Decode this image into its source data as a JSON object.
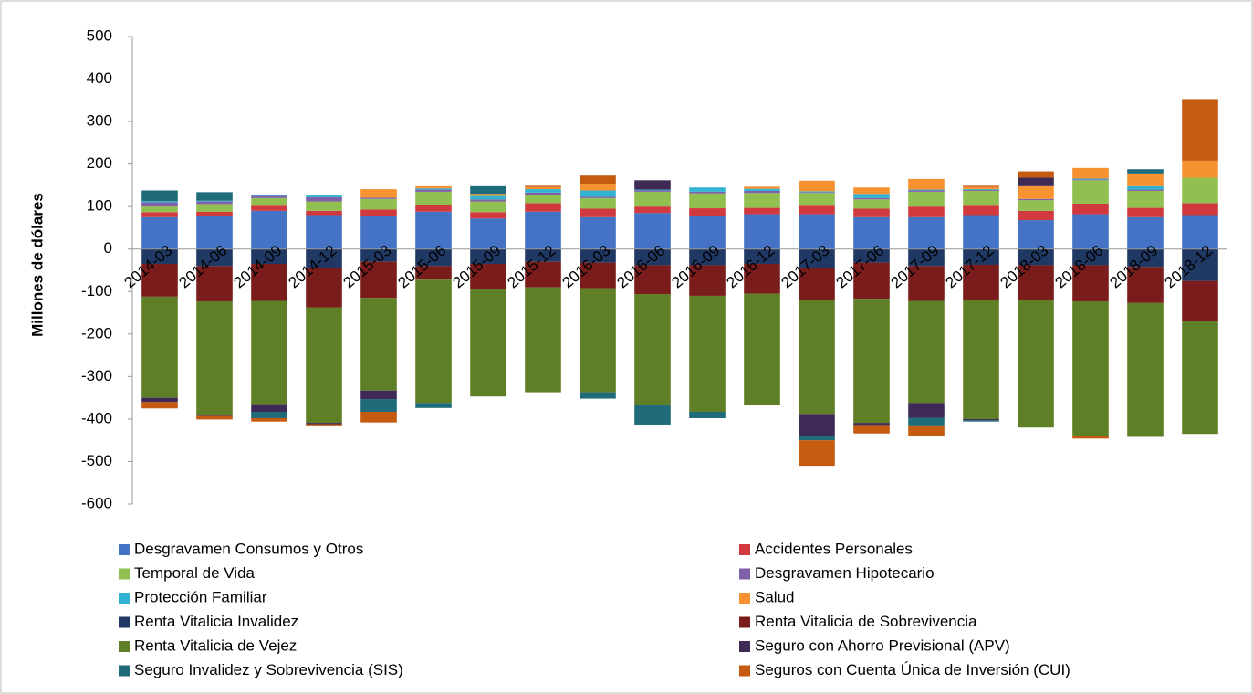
{
  "chart_data": {
    "type": "bar",
    "stacked": true,
    "y_label": "Millones de dólares",
    "categories": [
      "2014-03",
      "2014-06",
      "2014-09",
      "2014-12",
      "2015-03",
      "2015-06",
      "2015-09",
      "2015-12",
      "2016-03",
      "2016-06",
      "2016-09",
      "2016-12",
      "2017-03",
      "2017-06",
      "2017-09",
      "2017-12",
      "2018-03",
      "2018-06",
      "2018-09",
      "2018-12"
    ],
    "ylim": [
      -600,
      500
    ],
    "yticks": [
      500,
      400,
      300,
      200,
      100,
      0,
      -100,
      -200,
      -300,
      -400,
      -500,
      -600
    ],
    "grid": false,
    "legend": "bottom",
    "series": [
      {
        "name": "Desgravamen Consumos y Otros",
        "color": "#4472c4",
        "values": [
          75,
          78,
          90,
          80,
          78,
          88,
          72,
          88,
          75,
          85,
          78,
          82,
          82,
          75,
          75,
          80,
          68,
          82,
          75,
          80
        ]
      },
      {
        "name": "Accidentes Personales",
        "color": "#d0393e",
        "values": [
          12,
          10,
          12,
          10,
          15,
          15,
          15,
          20,
          20,
          15,
          18,
          15,
          20,
          20,
          25,
          22,
          22,
          25,
          22,
          28
        ]
      },
      {
        "name": "Temporal de Vida",
        "color": "#92c050",
        "values": [
          13,
          18,
          18,
          22,
          25,
          32,
          25,
          20,
          25,
          35,
          35,
          35,
          30,
          22,
          35,
          35,
          25,
          55,
          40,
          60
        ]
      },
      {
        "name": "Desgravamen Hipotecario",
        "color": "#7f5fa8",
        "values": [
          10,
          6,
          5,
          10,
          3,
          5,
          5,
          5,
          3,
          3,
          4,
          5,
          2,
          3,
          3,
          2,
          3,
          2,
          3,
          0
        ]
      },
      {
        "name": "Protección Familiar",
        "color": "#31b3d1",
        "values": [
          3,
          2,
          3,
          5,
          0,
          3,
          8,
          8,
          15,
          2,
          10,
          5,
          2,
          10,
          2,
          2,
          0,
          2,
          8,
          0
        ]
      },
      {
        "name": "Salud",
        "color": "#f79230",
        "values": [
          0,
          0,
          0,
          0,
          20,
          5,
          5,
          5,
          15,
          0,
          0,
          5,
          25,
          15,
          25,
          5,
          30,
          25,
          30,
          40
        ]
      },
      {
        "name": "Renta Vitalicia Invalidez",
        "color": "#1f3864",
        "values": [
          -35,
          -40,
          -35,
          -45,
          -30,
          -40,
          -35,
          -30,
          -32,
          -38,
          -38,
          -35,
          -45,
          -32,
          -40,
          -37,
          -38,
          -38,
          -42,
          -75
        ]
      },
      {
        "name": "Renta Vitalicia de Sobrevivencia",
        "color": "#7b1c1c",
        "values": [
          -77,
          -83,
          -87,
          -92,
          -85,
          -32,
          -60,
          -60,
          -60,
          -68,
          -72,
          -70,
          -75,
          -85,
          -82,
          -83,
          -82,
          -85,
          -85,
          -95
        ]
      },
      {
        "name": "Renta Vitalicia de Vejez",
        "color": "#5e7f25",
        "values": [
          -238,
          -267,
          -243,
          -272,
          -218,
          -290,
          -252,
          -247,
          -245,
          -262,
          -273,
          -263,
          -268,
          -292,
          -240,
          -280,
          -300,
          -318,
          -315,
          -265
        ]
      },
      {
        "name": "Seguro con Ahorro Previsional (APV)",
        "color": "#3f2a56",
        "values": [
          -10,
          -3,
          -18,
          -3,
          -20,
          0,
          0,
          0,
          0,
          22,
          0,
          0,
          -52,
          -5,
          -35,
          -3,
          20,
          0,
          0,
          0
        ]
      },
      {
        "name": "Seguro Invalidez y Sobrevivencia (SIS)",
        "color": "#1f6b7a",
        "values": [
          25,
          20,
          -15,
          0,
          -30,
          -12,
          18,
          0,
          -15,
          -45,
          -15,
          0,
          -10,
          0,
          -18,
          -3,
          0,
          0,
          10,
          0
        ]
      },
      {
        "name": "Seguros con Cuenta Única de Inversión (CUI)",
        "color": "#c55a11",
        "values": [
          -15,
          -8,
          -8,
          -3,
          -25,
          0,
          0,
          3,
          20,
          0,
          0,
          0,
          -60,
          -20,
          -25,
          3,
          15,
          -5,
          0,
          145
        ]
      }
    ]
  }
}
